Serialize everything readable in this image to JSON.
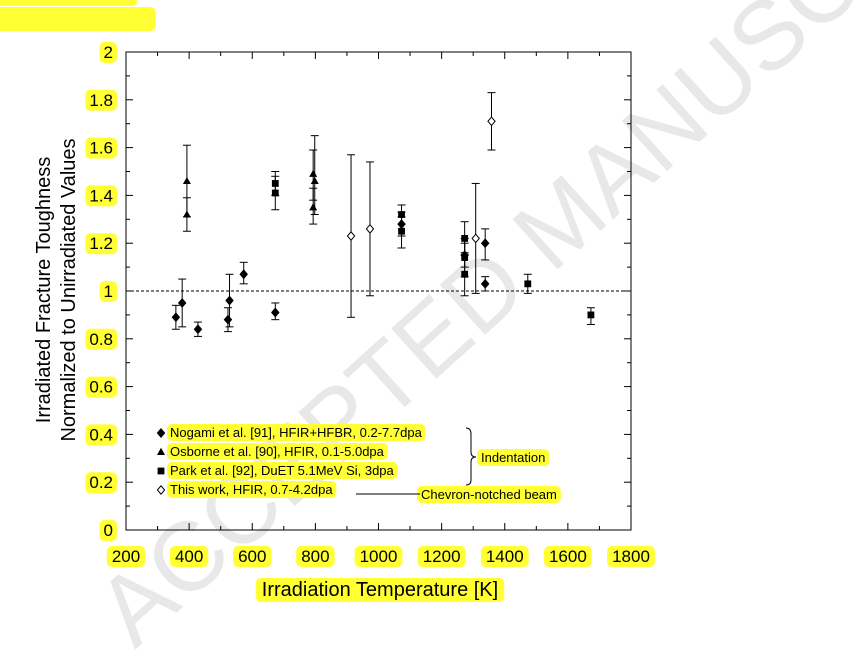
{
  "watermark": "ACCEPTED MANUSCRIPT",
  "chart_data": {
    "type": "scatter",
    "xlabel": "Irradiation Temperature [K]",
    "ylabel_lines": [
      "Irradiated Fracture Toughness",
      "Normalized to Unirradiated Values"
    ],
    "xlim": [
      200,
      1800
    ],
    "ylim": [
      0,
      2
    ],
    "x_ticks": [
      200,
      400,
      600,
      800,
      1000,
      1200,
      1400,
      1600,
      1800
    ],
    "y_ticks": [
      0,
      0.2,
      0.4,
      0.6,
      0.8,
      1,
      1.2,
      1.4,
      1.6,
      1.8,
      2
    ],
    "x_tick_labels": [
      "200",
      "400",
      "600",
      "800",
      "1000",
      "1200",
      "1400",
      "1600",
      "1800"
    ],
    "y_tick_labels": [
      "0",
      "0.2",
      "0.4",
      "0.6",
      "0.8",
      "1",
      "1.2",
      "1.4",
      "1.6",
      "1.8",
      "2"
    ],
    "reference_line": {
      "y": 1,
      "style": "dashed"
    },
    "grid": false,
    "legend_position": "bottom-left",
    "highlight_color": "#ffff33",
    "series": [
      {
        "name": "Nogami et al. [91], HFIR+HFBR, 0.2-7.7dpa",
        "marker": "diamond-filled",
        "points": [
          {
            "x": 358,
            "y": 0.89,
            "lo": 0.84,
            "hi": 0.94
          },
          {
            "x": 378,
            "y": 0.95,
            "lo": 0.85,
            "hi": 1.05
          },
          {
            "x": 428,
            "y": 0.84,
            "lo": 0.81,
            "hi": 0.87
          },
          {
            "x": 523,
            "y": 0.88,
            "lo": 0.83,
            "hi": 0.93
          },
          {
            "x": 528,
            "y": 0.96,
            "lo": 0.85,
            "hi": 1.07
          },
          {
            "x": 573,
            "y": 1.07,
            "lo": 1.03,
            "hi": 1.12
          },
          {
            "x": 673,
            "y": 0.91,
            "lo": 0.88,
            "hi": 0.95
          },
          {
            "x": 1073,
            "y": 1.28,
            "lo": 1.23,
            "hi": 1.33
          },
          {
            "x": 1273,
            "y": 1.15,
            "lo": 1.1,
            "hi": 1.2
          },
          {
            "x": 1338,
            "y": 1.2,
            "lo": 1.13,
            "hi": 1.26
          },
          {
            "x": 1338,
            "y": 1.03,
            "lo": 1.0,
            "hi": 1.06
          }
        ]
      },
      {
        "name": "Osborne et al. [90], HFIR, 0.1-5.0dpa",
        "marker": "triangle-filled",
        "points": [
          {
            "x": 393,
            "y": 1.46,
            "lo": 1.31,
            "hi": 1.61
          },
          {
            "x": 393,
            "y": 1.32,
            "lo": 1.25,
            "hi": 1.39
          },
          {
            "x": 793,
            "y": 1.49,
            "lo": 1.38,
            "hi": 1.59
          },
          {
            "x": 793,
            "y": 1.35,
            "lo": 1.28,
            "hi": 1.43
          },
          {
            "x": 798,
            "y": 1.46,
            "lo": 1.32,
            "hi": 1.65
          }
        ]
      },
      {
        "name": "Park et al. [92], DuET 5.1MeV Si, 3dpa",
        "marker": "square-filled",
        "points": [
          {
            "x": 673,
            "y": 1.45,
            "lo": 1.4,
            "hi": 1.5
          },
          {
            "x": 673,
            "y": 1.41,
            "lo": 1.34,
            "hi": 1.48
          },
          {
            "x": 1073,
            "y": 1.32,
            "lo": 1.28,
            "hi": 1.36
          },
          {
            "x": 1073,
            "y": 1.25,
            "lo": 1.18,
            "hi": 1.31
          },
          {
            "x": 1273,
            "y": 1.22,
            "lo": 1.16,
            "hi": 1.29
          },
          {
            "x": 1273,
            "y": 1.14,
            "lo": 1.06,
            "hi": 1.22
          },
          {
            "x": 1273,
            "y": 1.07,
            "lo": 0.98,
            "hi": 1.15
          },
          {
            "x": 1473,
            "y": 1.03,
            "lo": 0.99,
            "hi": 1.07
          },
          {
            "x": 1673,
            "y": 0.9,
            "lo": 0.86,
            "hi": 0.93
          }
        ]
      },
      {
        "name": "This work, HFIR, 0.7-4.2dpa",
        "marker": "diamond-open",
        "points": [
          {
            "x": 913,
            "y": 1.23,
            "lo": 0.89,
            "hi": 1.57
          },
          {
            "x": 973,
            "y": 1.26,
            "lo": 0.98,
            "hi": 1.54
          },
          {
            "x": 1308,
            "y": 1.22,
            "lo": 0.99,
            "hi": 1.45
          },
          {
            "x": 1358,
            "y": 1.71,
            "lo": 1.59,
            "hi": 1.83
          }
        ]
      }
    ],
    "annotations": {
      "indentation": "Indentation",
      "chevron": "Chevron-notched beam"
    }
  }
}
